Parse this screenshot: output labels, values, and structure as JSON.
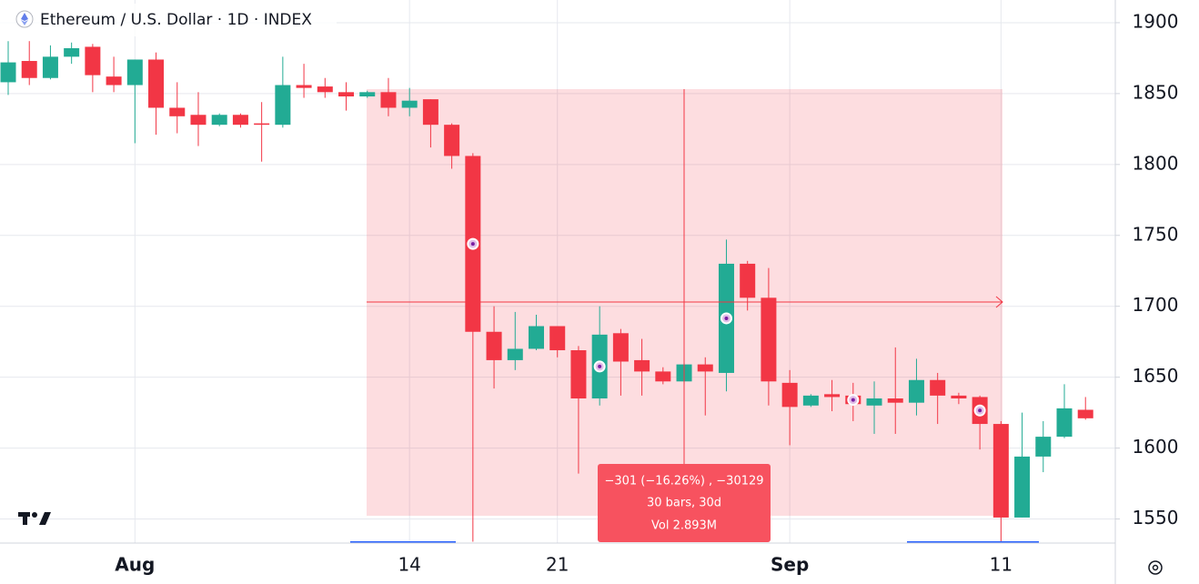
{
  "chart_data": {
    "type": "candlestick",
    "title": "Ethereum / U.S. Dollar · 1D · INDEX",
    "categories": [
      null,
      null,
      null,
      null,
      null,
      null,
      "Aug",
      null,
      null,
      null,
      null,
      null,
      null,
      null,
      null,
      null,
      null,
      null,
      null,
      "14",
      null,
      null,
      null,
      null,
      null,
      null,
      "21",
      null,
      null,
      null,
      null,
      null,
      null,
      null,
      null,
      null,
      null,
      "Sep",
      null,
      null,
      null,
      null,
      null,
      null,
      null,
      null,
      null,
      "11",
      null,
      null,
      null,
      null
    ],
    "open": [
      1858,
      1873,
      1861,
      1876,
      1883,
      1862,
      1856,
      1874,
      1840,
      1835,
      1828,
      1835,
      1829,
      1828,
      1856,
      1855,
      1851,
      1848,
      1851,
      1840,
      1846,
      1828,
      1806,
      1682,
      1662,
      1670,
      1686,
      1669,
      1635,
      1681,
      1662,
      1654,
      1647,
      1659,
      1653,
      1730,
      1706,
      1646,
      1630,
      1638,
      1637,
      1630,
      1635,
      1632,
      1648,
      1637,
      1636,
      1617,
      1551,
      1594,
      1608,
      1627
    ],
    "high": [
      1887,
      1887,
      1884,
      1886,
      1885,
      1876,
      1874,
      1879,
      1858,
      1851,
      1836,
      1836,
      1844,
      1876,
      1871,
      1861,
      1858,
      1852,
      1861,
      1854,
      1846,
      1829,
      1808,
      1700,
      1696,
      1694,
      1686,
      1672,
      1700,
      1684,
      1677,
      1657,
      1660,
      1664,
      1747,
      1732,
      1727,
      1655,
      1638,
      1648,
      1646,
      1647,
      1671,
      1663,
      1653,
      1639,
      1637,
      1619,
      1625,
      1619,
      1645,
      1636
    ],
    "low": [
      1849,
      1856,
      1860,
      1871,
      1851,
      1851,
      1815,
      1821,
      1822,
      1813,
      1827,
      1826,
      1802,
      1826,
      1847,
      1847,
      1838,
      1847,
      1834,
      1834,
      1812,
      1797,
      1534,
      1642,
      1655,
      1669,
      1664,
      1582,
      1630,
      1637,
      1637,
      1645,
      1645,
      1623,
      1640,
      1697,
      1630,
      1602,
      1629,
      1626,
      1619,
      1610,
      1610,
      1623,
      1617,
      1631,
      1599,
      1534,
      1551,
      1583,
      1607,
      1620
    ],
    "close": [
      1872,
      1861,
      1876,
      1882,
      1863,
      1856,
      1874,
      1840,
      1834,
      1828,
      1835,
      1828,
      1828,
      1856,
      1854,
      1851,
      1848,
      1851,
      1840,
      1845,
      1828,
      1806,
      1682,
      1662,
      1670,
      1686,
      1669,
      1635,
      1680,
      1661,
      1654,
      1647,
      1659,
      1654,
      1730,
      1706,
      1647,
      1629,
      1637,
      1636,
      1631,
      1635,
      1632,
      1648,
      1637,
      1635,
      1617,
      1551,
      1594,
      1608,
      1628,
      1621
    ],
    "up_color": "#22ab94",
    "down_color": "#f23645",
    "ylim": [
      1533,
      1916
    ],
    "yticks": [
      1550,
      1600,
      1650,
      1700,
      1750,
      1800,
      1850,
      1900
    ],
    "grid": true,
    "annotations": [
      "−301 (−16.26%) , −30129",
      "30 bars, 30d",
      "Vol 2.893M"
    ]
  }
}
